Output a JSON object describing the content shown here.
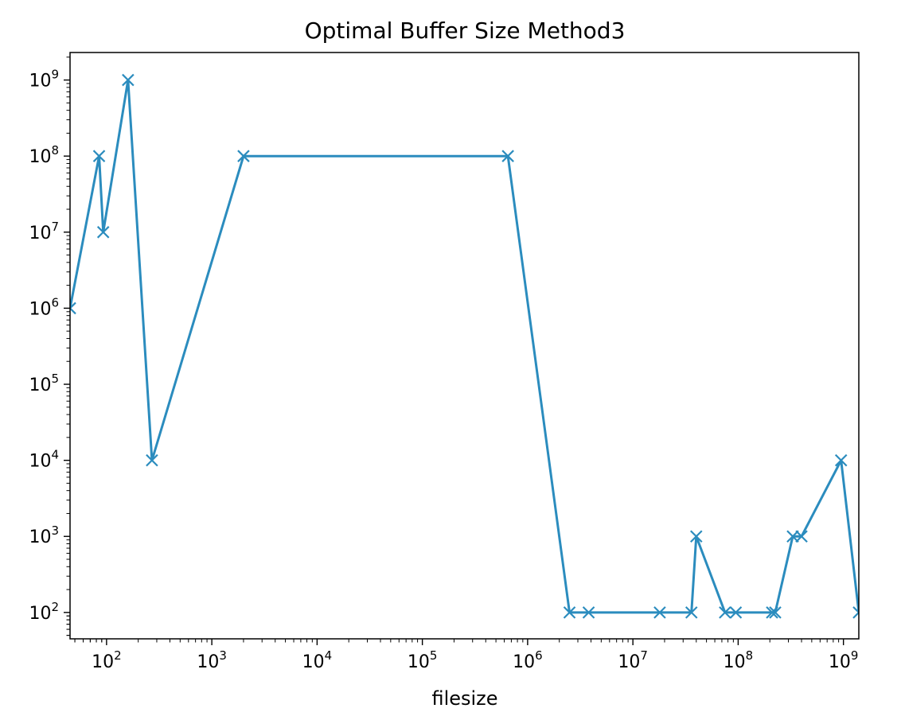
{
  "chart_data": {
    "type": "line",
    "title": "Optimal Buffer Size Method3",
    "xlabel": "filesize",
    "ylabel": "",
    "xscale": "log",
    "yscale": "log",
    "xlim": [
      45,
      1400000000
    ],
    "ylim": [
      45,
      2300000000
    ],
    "grid": false,
    "legend": "none",
    "marker": "x",
    "color": "#2b8cbe",
    "x_ticks": [
      {
        "value": 100,
        "base": "10",
        "exp": "2"
      },
      {
        "value": 1000,
        "base": "10",
        "exp": "3"
      },
      {
        "value": 10000,
        "base": "10",
        "exp": "4"
      },
      {
        "value": 100000,
        "base": "10",
        "exp": "5"
      },
      {
        "value": 1000000,
        "base": "10",
        "exp": "6"
      },
      {
        "value": 10000000,
        "base": "10",
        "exp": "7"
      },
      {
        "value": 100000000,
        "base": "10",
        "exp": "8"
      },
      {
        "value": 1000000000,
        "base": "10",
        "exp": "9"
      }
    ],
    "y_ticks": [
      {
        "value": 100,
        "base": "10",
        "exp": "2"
      },
      {
        "value": 1000,
        "base": "10",
        "exp": "3"
      },
      {
        "value": 10000,
        "base": "10",
        "exp": "4"
      },
      {
        "value": 100000,
        "base": "10",
        "exp": "5"
      },
      {
        "value": 1000000,
        "base": "10",
        "exp": "6"
      },
      {
        "value": 10000000,
        "base": "10",
        "exp": "7"
      },
      {
        "value": 100000000,
        "base": "10",
        "exp": "8"
      },
      {
        "value": 1000000000,
        "base": "10",
        "exp": "9"
      }
    ],
    "series": [
      {
        "x": [
          45,
          85,
          93,
          160,
          270,
          2000,
          650000,
          2500000,
          3800000,
          18000000,
          36000000,
          40000000,
          75000000,
          95000000,
          210000000,
          225000000,
          330000000,
          400000000,
          950000000,
          1400000000
        ],
        "y": [
          1000000,
          100000000,
          10000000,
          1000000000,
          10000,
          100000000,
          100000000,
          100,
          100,
          100,
          100,
          1000,
          100,
          100,
          100,
          100,
          1000,
          1000,
          10000,
          100
        ]
      }
    ]
  }
}
